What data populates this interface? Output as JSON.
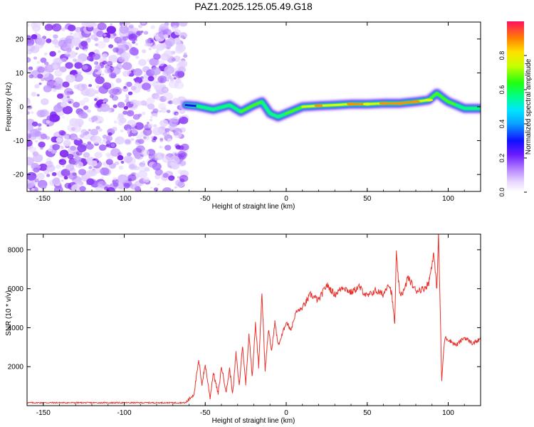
{
  "title": "PAZ1.2025.125.05.49.G18",
  "chart_data": [
    {
      "type": "heatmap",
      "xlabel": "Height of straight line (km)",
      "ylabel": "Frequency (Hz)",
      "xlim": [
        -160,
        120
      ],
      "ylim": [
        -25,
        25
      ],
      "xticks": [
        -150,
        -100,
        -50,
        0,
        50,
        100
      ],
      "yticks": [
        -20,
        -10,
        0,
        10,
        20
      ],
      "colorbar": {
        "label": "Normalized spectral amplitude",
        "ticks": [
          "0.0",
          "0.2",
          "0.4",
          "0.6",
          "0.8"
        ],
        "range": [
          0,
          1
        ]
      },
      "noise_region_x": [
        -160,
        -62
      ],
      "ridge": {
        "x": [
          -62,
          -55,
          -45,
          -35,
          -28,
          -20,
          -15,
          -10,
          -5,
          0,
          5,
          10,
          20,
          30,
          40,
          50,
          60,
          70,
          80,
          88,
          93,
          97,
          100,
          105,
          110,
          120
        ],
        "freq": [
          0.5,
          0.2,
          -0.8,
          0.5,
          -1.5,
          0.5,
          1.5,
          -2.0,
          -3.0,
          -2.0,
          -1.0,
          0.0,
          0.3,
          0.5,
          0.8,
          0.8,
          1.0,
          1.0,
          1.5,
          2.0,
          4.0,
          2.5,
          1.5,
          0.5,
          -0.5,
          -0.5
        ],
        "amplitude": [
          0.35,
          0.5,
          0.6,
          0.55,
          0.6,
          0.75,
          0.7,
          0.55,
          0.55,
          0.65,
          0.65,
          0.7,
          0.85,
          0.75,
          0.9,
          0.8,
          0.85,
          0.9,
          0.85,
          0.8,
          0.6,
          0.75,
          0.7,
          0.65,
          0.6,
          0.5
        ]
      }
    },
    {
      "type": "line",
      "xlabel": "Height of straight line (km)",
      "ylabel": "SNR (10 * v/v)",
      "xlim": [
        -160,
        120
      ],
      "ylim": [
        0,
        8800
      ],
      "xticks": [
        -150,
        -100,
        -50,
        0,
        50,
        100
      ],
      "yticks": [
        2000,
        4000,
        6000,
        8000
      ],
      "color": "#e8332d",
      "series": [
        {
          "x": [
            -160,
            -140,
            -120,
            -100,
            -80,
            -62,
            -57,
            -54,
            -52,
            -50,
            -47,
            -45,
            -42,
            -40,
            -37,
            -35,
            -33,
            -31,
            -29,
            -27,
            -25,
            -23,
            -21,
            -19,
            -17,
            -15,
            -13,
            -11,
            -9,
            -7,
            -5,
            -3,
            0,
            3,
            6,
            10,
            15,
            20,
            25,
            30,
            35,
            40,
            45,
            50,
            55,
            60,
            63,
            65,
            67,
            68,
            70,
            73,
            75,
            80,
            85,
            88,
            91,
            93,
            94,
            95,
            96,
            97,
            98,
            100,
            105,
            110,
            115,
            120
          ],
          "y": [
            150,
            150,
            150,
            150,
            150,
            150,
            600,
            2300,
            1100,
            2100,
            400,
            1700,
            600,
            2000,
            700,
            1900,
            600,
            2700,
            1000,
            3100,
            1100,
            3700,
            1500,
            4200,
            2000,
            5800,
            1800,
            3900,
            2800,
            4300,
            3100,
            3500,
            4300,
            3900,
            4800,
            5000,
            5700,
            5400,
            6200,
            5700,
            6100,
            5800,
            6100,
            5600,
            5900,
            5700,
            6300,
            5800,
            4200,
            7800,
            5700,
            5900,
            6600,
            5900,
            6000,
            6300,
            7800,
            6000,
            8800,
            5200,
            1200,
            2600,
            3500,
            3400,
            3100,
            3500,
            3200,
            3400
          ]
        }
      ]
    }
  ]
}
